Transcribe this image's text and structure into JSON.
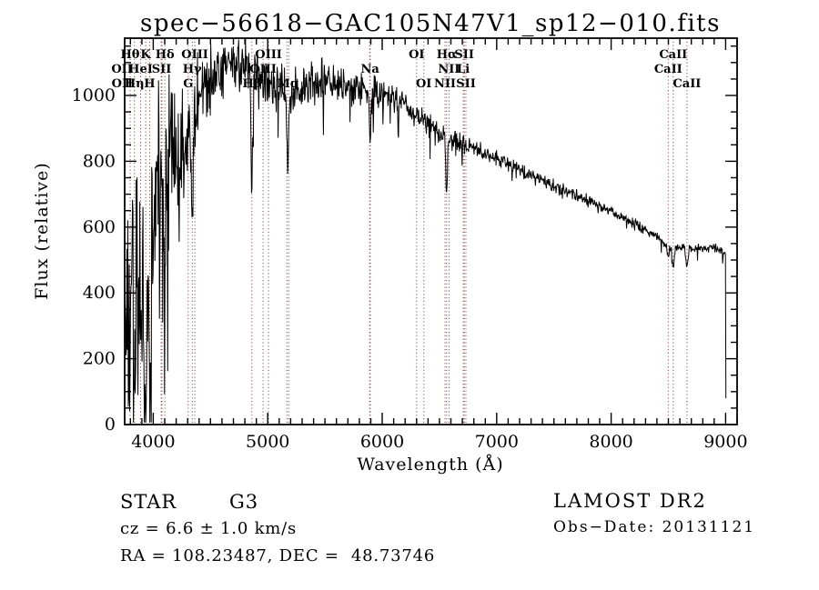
{
  "title": "spec−56618−GAC105N47V1_sp12−010.fits",
  "footer": {
    "class": "STAR",
    "subclass": "G3",
    "cz": "cz = 6.6 ± 1.0 km/s",
    "ra_dec": "RA = 108.23487, DEC =  48.73746",
    "survey": "LAMOST DR2",
    "obs_date": "Obs−Date: 20131121"
  },
  "chart_data": {
    "type": "line",
    "title": "spec−56618−GAC105N47V1_sp12−010.fits",
    "xlabel": "Wavelength (Å)",
    "ylabel": "Flux (relative)",
    "xlim": [
      3750,
      9100
    ],
    "ylim": [
      0,
      1174
    ],
    "x_major_ticks": [
      4000,
      5000,
      6000,
      7000,
      8000,
      9000
    ],
    "x_minor_step": 100,
    "y_major_ticks": [
      0,
      200,
      400,
      600,
      800,
      1000
    ],
    "y_minor_step": 50,
    "grid": false,
    "legend": false,
    "line_color": "#000000",
    "marker_line_color": "#8b4d52",
    "marker_wavelengths": [
      3726.2,
      3728.9,
      3797.9,
      3835.4,
      3889.0,
      3933.7,
      3968.5,
      4068.6,
      4076.3,
      4101.7,
      4305.0,
      4340.5,
      4363.2,
      4861.3,
      4958.9,
      5006.8,
      5167.3,
      5183.6,
      5890.0,
      5895.9,
      6300.3,
      6363.8,
      6548.1,
      6562.8,
      6583.5,
      6708.0,
      6716.4,
      6730.8,
      8498.0,
      8542.1,
      8662.1
    ],
    "spectral_lines": [
      {
        "label": "OII",
        "wavelength": 3727,
        "row": 2
      },
      {
        "label": "OII",
        "wavelength": 3729,
        "row": 3
      },
      {
        "label": "Hθ",
        "wavelength": 3798,
        "row": 1
      },
      {
        "label": "Hη",
        "wavelength": 3835,
        "row": 3
      },
      {
        "label": "HeI",
        "wavelength": 3889,
        "row": 2
      },
      {
        "label": "K",
        "wavelength": 3933,
        "row": 1
      },
      {
        "label": "H",
        "wavelength": 3968,
        "row": 3
      },
      {
        "label": "SII",
        "wavelength": 4072,
        "row": 2
      },
      {
        "label": "Hδ",
        "wavelength": 4101,
        "row": 1
      },
      {
        "label": "G",
        "wavelength": 4305,
        "row": 3
      },
      {
        "label": "Hγ",
        "wavelength": 4340,
        "row": 2
      },
      {
        "label": "OIII",
        "wavelength": 4363,
        "row": 1
      },
      {
        "label": "Hβ",
        "wavelength": 4861,
        "row": 3
      },
      {
        "label": "OIII",
        "wavelength": 4959,
        "row": 2
      },
      {
        "label": "OIII",
        "wavelength": 5007,
        "row": 1
      },
      {
        "label": "Mg",
        "wavelength": 5175,
        "row": 3
      },
      {
        "label": "Na",
        "wavelength": 5893,
        "row": 2
      },
      {
        "label": "OI",
        "wavelength": 6300,
        "row": 1
      },
      {
        "label": "OI",
        "wavelength": 6363,
        "row": 3
      },
      {
        "label": "NII",
        "wavelength": 6548,
        "row": 3
      },
      {
        "label": "Hα",
        "wavelength": 6563,
        "row": 1
      },
      {
        "label": "NII",
        "wavelength": 6583,
        "row": 2
      },
      {
        "label": "Li",
        "wavelength": 6708,
        "row": 2
      },
      {
        "label": "SII",
        "wavelength": 6717,
        "row": 1
      },
      {
        "label": "SII",
        "wavelength": 6731,
        "row": 3
      },
      {
        "label": "CaII",
        "wavelength": 8498,
        "row": 2
      },
      {
        "label": "CaII",
        "wavelength": 8542,
        "row": 1
      },
      {
        "label": "CaII",
        "wavelength": 8662,
        "row": 3
      }
    ],
    "spectrum": {
      "seed": 20131121,
      "domain": [
        3750,
        9002
      ],
      "step": 4,
      "continuum": [
        [
          3750,
          480
        ],
        [
          3800,
          520
        ],
        [
          3850,
          540
        ],
        [
          3900,
          560
        ],
        [
          3950,
          580
        ],
        [
          4000,
          680
        ],
        [
          4060,
          780
        ],
        [
          4120,
          850
        ],
        [
          4200,
          890
        ],
        [
          4280,
          880
        ],
        [
          4360,
          920
        ],
        [
          4440,
          1030
        ],
        [
          4520,
          1075
        ],
        [
          4640,
          1095
        ],
        [
          4780,
          1090
        ],
        [
          4900,
          1065
        ],
        [
          5000,
          1045
        ],
        [
          5100,
          1025
        ],
        [
          5200,
          1015
        ],
        [
          5300,
          1035
        ],
        [
          5450,
          1045
        ],
        [
          5600,
          1035
        ],
        [
          5750,
          1030
        ],
        [
          5900,
          1010
        ],
        [
          6050,
          1000
        ],
        [
          6200,
          965
        ],
        [
          6350,
          925
        ],
        [
          6500,
          885
        ],
        [
          6650,
          860
        ],
        [
          6800,
          838
        ],
        [
          6950,
          815
        ],
        [
          7100,
          792
        ],
        [
          7250,
          768
        ],
        [
          7400,
          742
        ],
        [
          7550,
          718
        ],
        [
          7700,
          695
        ],
        [
          7850,
          672
        ],
        [
          8000,
          648
        ],
        [
          8150,
          622
        ],
        [
          8300,
          592
        ],
        [
          8420,
          568
        ],
        [
          8460,
          548
        ],
        [
          8600,
          540
        ],
        [
          8750,
          535
        ],
        [
          8900,
          537
        ],
        [
          8998,
          520
        ],
        [
          9002,
          70
        ]
      ],
      "noise_amp": [
        [
          3750,
          310
        ],
        [
          3900,
          300
        ],
        [
          4050,
          230
        ],
        [
          4200,
          170
        ],
        [
          4350,
          130
        ],
        [
          4500,
          95
        ],
        [
          4700,
          65
        ],
        [
          4900,
          60
        ],
        [
          5100,
          55
        ],
        [
          5400,
          50
        ],
        [
          5700,
          45
        ],
        [
          6000,
          38
        ],
        [
          6300,
          30
        ],
        [
          6600,
          25
        ],
        [
          6900,
          20
        ],
        [
          7300,
          17
        ],
        [
          7700,
          15
        ],
        [
          8100,
          13
        ],
        [
          8500,
          12
        ],
        [
          9002,
          11
        ]
      ],
      "absorption": [
        [
          3798,
          270,
          8
        ],
        [
          3835,
          340,
          8
        ],
        [
          3889,
          300,
          8
        ],
        [
          3933,
          440,
          10
        ],
        [
          3968,
          440,
          10
        ],
        [
          4101,
          340,
          9
        ],
        [
          4227,
          150,
          7
        ],
        [
          4340,
          310,
          9
        ],
        [
          4861,
          330,
          7
        ],
        [
          5175,
          240,
          8
        ],
        [
          5893,
          140,
          7
        ],
        [
          6563,
          175,
          7
        ],
        [
          8498,
          40,
          8
        ],
        [
          8542,
          60,
          9
        ],
        [
          8662,
          50,
          9
        ]
      ],
      "blue_spike": {
        "max_wavelength": 4160,
        "probability": 0.2,
        "max_depth": 540
      },
      "down_spike": {
        "probability": 0.055,
        "scale": 2.6
      }
    }
  }
}
